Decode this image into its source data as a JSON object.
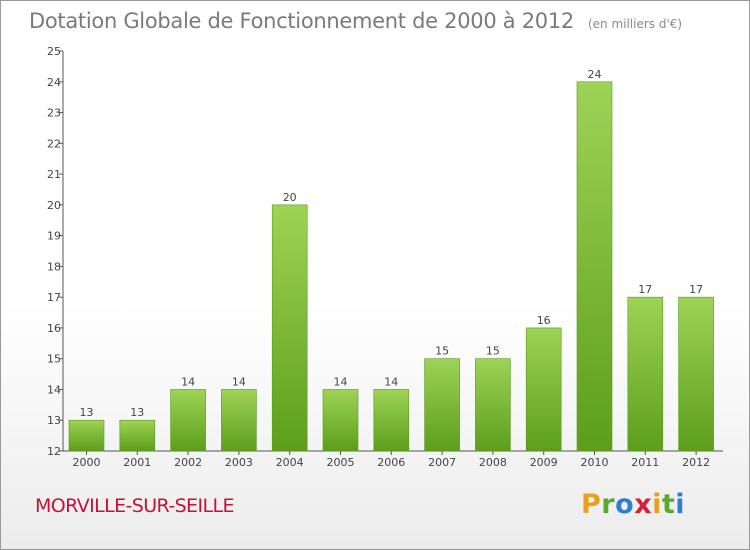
{
  "header": {
    "title": "Dotation Globale de Fonctionnement de 2000 à 2012",
    "subtitle": "(en milliers d'€)"
  },
  "footer": {
    "commune": "MORVILLE-SUR-SEILLE",
    "logo_letters": [
      "P",
      "r",
      "o",
      "x",
      "i",
      "t",
      "i"
    ],
    "logo_colors": [
      "#e8a020",
      "#5aa830",
      "#2f7fd0",
      "#d0203a",
      "#e8a020",
      "#5aa830",
      "#2f7fd0"
    ]
  },
  "chart_data": {
    "type": "bar",
    "title": "Dotation Globale de Fonctionnement de 2000 à 2012",
    "subtitle": "(en milliers d'€)",
    "categories": [
      "2000",
      "2001",
      "2002",
      "2003",
      "2004",
      "2005",
      "2006",
      "2007",
      "2008",
      "2009",
      "2010",
      "2011",
      "2012"
    ],
    "values": [
      13,
      13,
      14,
      14,
      20,
      14,
      14,
      15,
      15,
      16,
      24,
      17,
      17
    ],
    "ylim": [
      12,
      25
    ],
    "yticks": [
      12,
      13,
      14,
      15,
      16,
      17,
      18,
      19,
      20,
      21,
      22,
      23,
      24,
      25
    ],
    "grid": false,
    "legend": "none",
    "colors": {
      "bar_top": "#9ed356",
      "bar_bottom": "#5c9e1c",
      "bar_edge": "#5a9a1e"
    }
  }
}
